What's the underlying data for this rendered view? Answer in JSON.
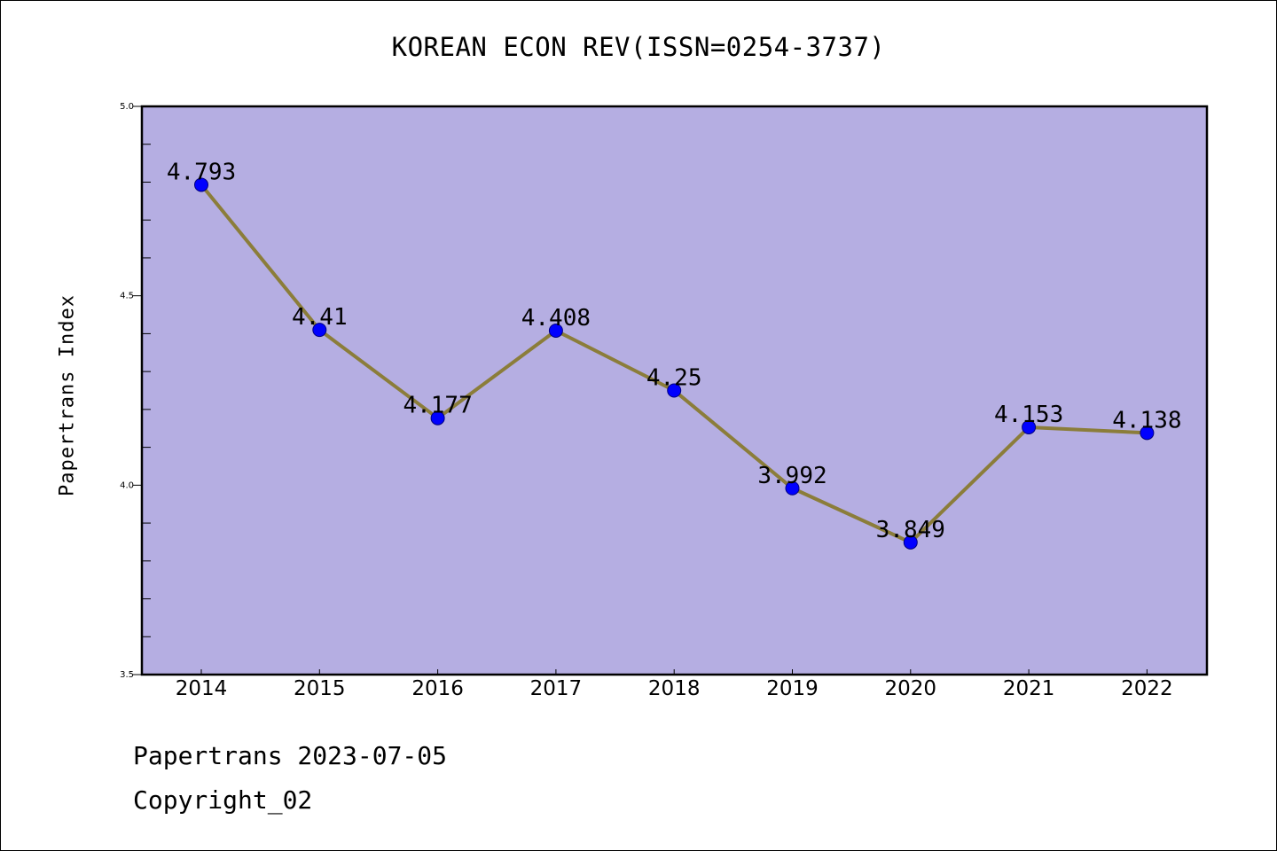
{
  "header": {
    "title": "KOREAN ECON REV(ISSN=0254-3737)"
  },
  "footer": {
    "line1": "Papertrans 2023-07-05",
    "line2": "Copyright_02"
  },
  "colors": {
    "plot_background": "#b5aee2",
    "line": "#8b7d3a",
    "marker_fill": "#0000ff",
    "marker_edge": "#000080"
  },
  "chart_data": {
    "type": "line",
    "title": "KOREAN ECON REV(ISSN=0254-3737)",
    "xlabel": "",
    "ylabel": "Papertrans Index",
    "categories": [
      "2014",
      "2015",
      "2016",
      "2017",
      "2018",
      "2019",
      "2020",
      "2021",
      "2022"
    ],
    "series": [
      {
        "values": [
          4.793,
          4.41,
          4.177,
          4.408,
          4.25,
          3.992,
          3.849,
          4.153,
          4.138
        ],
        "labels": [
          "4.793",
          "4.41",
          "4.177",
          "4.408",
          "4.25",
          "3.992",
          "3.849",
          "4.153",
          "4.138"
        ]
      }
    ],
    "ylim": [
      3.5,
      5.0
    ],
    "yticks": [
      3.5,
      4.0,
      4.5,
      5.0
    ],
    "ytick_labels": [
      "3.5",
      "4.0",
      "4.5",
      "5.0"
    ],
    "grid": false,
    "legend": "none"
  }
}
